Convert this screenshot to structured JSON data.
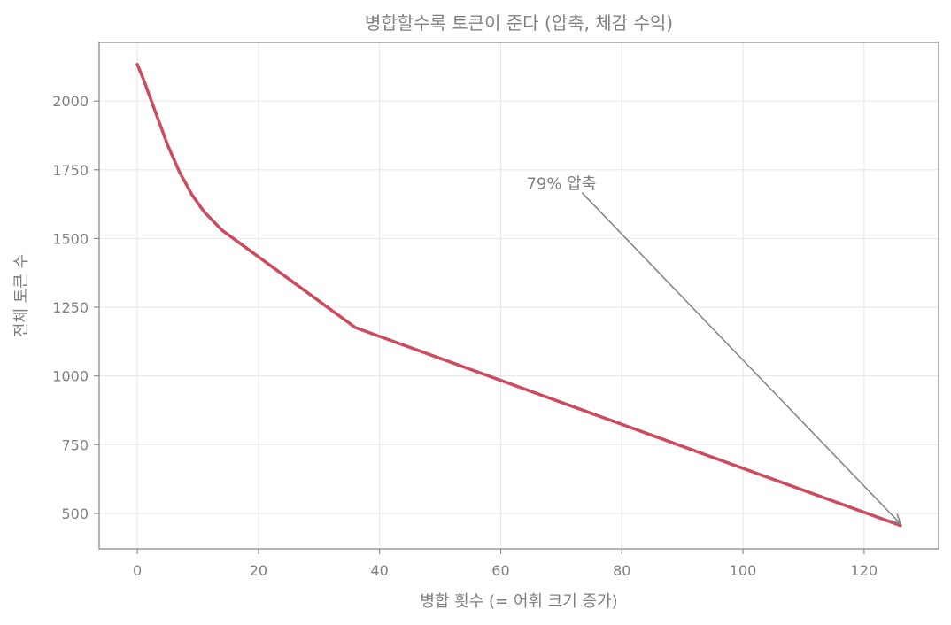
{
  "chart_data": {
    "type": "line",
    "title": "병합할수록 토큰이 준다 (압축, 체감 수익)",
    "xlabel": "병합 횟수 (= 어휘 크기 증가)",
    "ylabel": "전체 토큰 수",
    "xlim": [
      -6.3,
      132.3
    ],
    "ylim": [
      371,
      2213
    ],
    "xticks": [
      0,
      20,
      40,
      60,
      80,
      100,
      120
    ],
    "yticks": [
      500,
      750,
      1000,
      1250,
      1500,
      1750,
      2000
    ],
    "grid": true,
    "series": [
      {
        "color": "#cc4b5f",
        "x": [
          0,
          1,
          3,
          5,
          7,
          9,
          11,
          14,
          36,
          126
        ],
        "y": [
          2133,
          2080,
          1960,
          1840,
          1740,
          1660,
          1598,
          1530,
          1176,
          456
        ]
      }
    ],
    "annotation": {
      "text": "79% 압축",
      "text_at": [
        70,
        1700
      ],
      "arrow_from": [
        73.4,
        1667
      ],
      "arrow_to": [
        126,
        462
      ]
    }
  }
}
